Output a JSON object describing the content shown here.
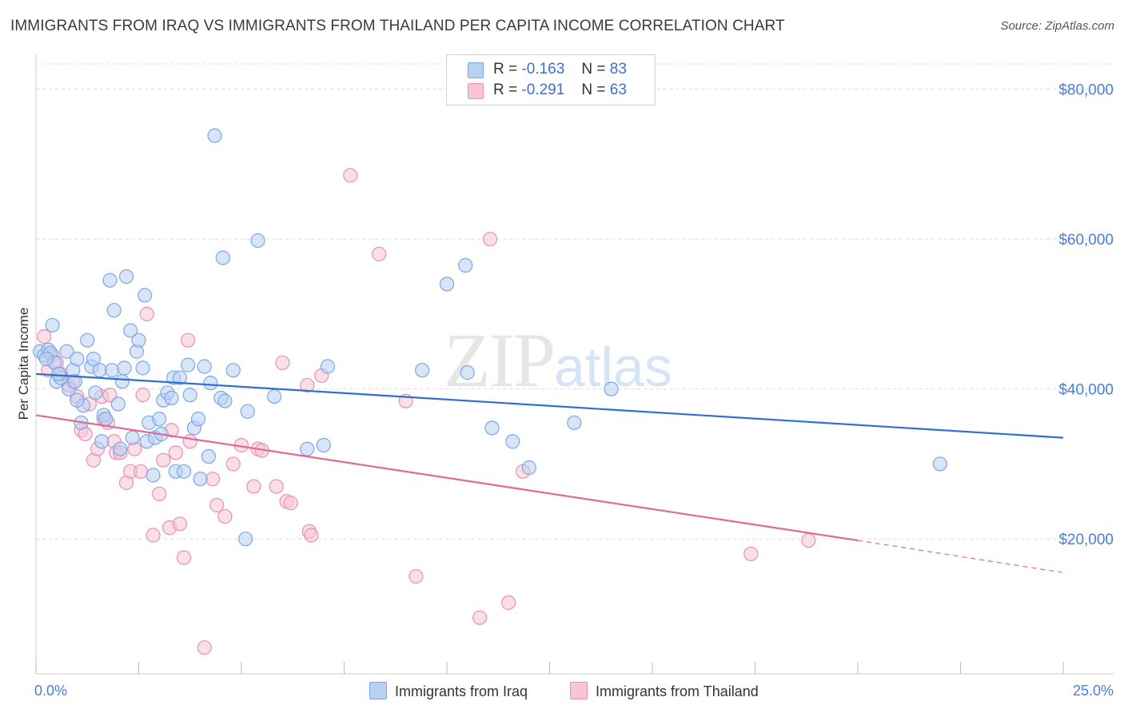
{
  "title": "IMMIGRANTS FROM IRAQ VS IMMIGRANTS FROM THAILAND PER CAPITA INCOME CORRELATION CHART",
  "source": "Source: ZipAtlas.com",
  "watermark": {
    "zip": "ZIP",
    "atlas": "atlas"
  },
  "legend": {
    "rows": [
      {
        "r_label": "R =",
        "r_value": "-0.163",
        "n_label": "N =",
        "n_value": "83"
      },
      {
        "r_label": "R =",
        "r_value": "-0.291",
        "n_label": "N =",
        "n_value": "63"
      }
    ]
  },
  "bottom_legend": {
    "series1": "Immigrants from Iraq",
    "series2": "Immigrants from Thailand"
  },
  "chart_data": {
    "type": "scatter",
    "title": "IMMIGRANTS FROM IRAQ VS IMMIGRANTS FROM THAILAND PER CAPITA INCOME CORRELATION CHART",
    "xlabel": "",
    "ylabel": "Per Capita Income",
    "xlim": [
      0,
      25
    ],
    "ylim": [
      2000,
      84000
    ],
    "x_tick_labels": [
      "0.0%",
      "25.0%"
    ],
    "y_ticks": [
      20000,
      40000,
      60000,
      80000
    ],
    "y_tick_labels": [
      "$20,000",
      "$40,000",
      "$60,000",
      "$80,000"
    ],
    "grid": true,
    "colors": {
      "iraq": "#7ba7e6",
      "iraq_fill": "#b8d0f4",
      "thailand": "#ee8fb0",
      "thailand_fill": "#f8c5d6",
      "iraq_line": "#2f6fce",
      "thailand_line": "#e06a95"
    },
    "series": [
      {
        "name": "Immigrants from Iraq",
        "r": -0.163,
        "n": 83,
        "trend": {
          "x": [
            0.0,
            25.0
          ],
          "y": [
            42000,
            33500
          ]
        },
        "points": [
          [
            0.1,
            45000
          ],
          [
            0.2,
            44500
          ],
          [
            0.3,
            45200
          ],
          [
            0.35,
            44800
          ],
          [
            0.4,
            48500
          ],
          [
            0.45,
            43500
          ],
          [
            0.5,
            41000
          ],
          [
            0.6,
            41500
          ],
          [
            0.75,
            45000
          ],
          [
            0.8,
            40000
          ],
          [
            0.9,
            42500
          ],
          [
            0.95,
            41000
          ],
          [
            1.0,
            44000
          ],
          [
            1.1,
            35500
          ],
          [
            1.15,
            37800
          ],
          [
            1.25,
            46500
          ],
          [
            1.35,
            43000
          ],
          [
            1.4,
            44000
          ],
          [
            1.45,
            39500
          ],
          [
            1.55,
            42500
          ],
          [
            1.6,
            33000
          ],
          [
            1.65,
            36500
          ],
          [
            1.7,
            36000
          ],
          [
            1.8,
            54500
          ],
          [
            1.85,
            42500
          ],
          [
            1.9,
            50500
          ],
          [
            2.0,
            38000
          ],
          [
            2.05,
            32000
          ],
          [
            2.1,
            41000
          ],
          [
            2.15,
            42800
          ],
          [
            2.2,
            55000
          ],
          [
            2.3,
            47800
          ],
          [
            2.35,
            33500
          ],
          [
            2.45,
            45000
          ],
          [
            2.5,
            46500
          ],
          [
            2.6,
            42800
          ],
          [
            2.65,
            52500
          ],
          [
            2.7,
            33000
          ],
          [
            2.75,
            35500
          ],
          [
            2.85,
            28500
          ],
          [
            2.9,
            33500
          ],
          [
            3.0,
            36000
          ],
          [
            3.05,
            34000
          ],
          [
            3.1,
            38500
          ],
          [
            3.2,
            39500
          ],
          [
            3.3,
            38800
          ],
          [
            3.35,
            41500
          ],
          [
            3.4,
            29000
          ],
          [
            3.5,
            41500
          ],
          [
            3.6,
            29000
          ],
          [
            3.7,
            43200
          ],
          [
            3.75,
            39200
          ],
          [
            3.85,
            34800
          ],
          [
            3.95,
            36000
          ],
          [
            4.0,
            28000
          ],
          [
            4.1,
            43000
          ],
          [
            4.2,
            31000
          ],
          [
            4.25,
            40800
          ],
          [
            4.5,
            38800
          ],
          [
            4.55,
            57500
          ],
          [
            4.6,
            38400
          ],
          [
            4.35,
            73800
          ],
          [
            4.8,
            42500
          ],
          [
            5.15,
            37000
          ],
          [
            5.1,
            20000
          ],
          [
            5.4,
            59800
          ],
          [
            5.8,
            39000
          ],
          [
            6.6,
            32000
          ],
          [
            7.0,
            32500
          ],
          [
            7.1,
            43000
          ],
          [
            9.4,
            42500
          ],
          [
            10.0,
            54000
          ],
          [
            10.45,
            56500
          ],
          [
            10.5,
            42200
          ],
          [
            11.1,
            34800
          ],
          [
            11.6,
            33000
          ],
          [
            12.0,
            29500
          ],
          [
            13.1,
            35500
          ],
          [
            14.0,
            40000
          ],
          [
            22.0,
            30000
          ],
          [
            0.25,
            44000
          ],
          [
            0.55,
            42000
          ],
          [
            1.0,
            38500
          ]
        ]
      },
      {
        "name": "Immigrants from Thailand",
        "r": -0.291,
        "n": 63,
        "trend": {
          "x": [
            0.0,
            20.0
          ],
          "y": [
            36500,
            19800
          ]
        },
        "trend_dashed": {
          "x": [
            20.0,
            25.0
          ],
          "y": [
            19800,
            15500
          ]
        },
        "points": [
          [
            0.2,
            47000
          ],
          [
            0.3,
            42500
          ],
          [
            0.4,
            44500
          ],
          [
            0.5,
            43500
          ],
          [
            0.6,
            42000
          ],
          [
            0.8,
            40500
          ],
          [
            0.9,
            41000
          ],
          [
            1.0,
            39000
          ],
          [
            1.1,
            34500
          ],
          [
            1.2,
            34000
          ],
          [
            1.3,
            38000
          ],
          [
            1.4,
            30500
          ],
          [
            1.5,
            32000
          ],
          [
            1.6,
            39000
          ],
          [
            1.65,
            36000
          ],
          [
            1.75,
            35500
          ],
          [
            1.8,
            39200
          ],
          [
            1.9,
            33000
          ],
          [
            1.95,
            31500
          ],
          [
            2.05,
            31500
          ],
          [
            2.2,
            27500
          ],
          [
            2.3,
            29000
          ],
          [
            2.4,
            32000
          ],
          [
            2.55,
            29000
          ],
          [
            2.6,
            39200
          ],
          [
            2.7,
            50000
          ],
          [
            2.85,
            20500
          ],
          [
            3.0,
            26000
          ],
          [
            3.1,
            30500
          ],
          [
            3.25,
            21500
          ],
          [
            3.3,
            34500
          ],
          [
            3.4,
            31500
          ],
          [
            3.5,
            22000
          ],
          [
            3.6,
            17500
          ],
          [
            3.7,
            46500
          ],
          [
            3.75,
            33000
          ],
          [
            4.1,
            5500
          ],
          [
            4.3,
            28000
          ],
          [
            4.4,
            24500
          ],
          [
            4.6,
            23000
          ],
          [
            4.8,
            30000
          ],
          [
            5.0,
            32500
          ],
          [
            5.3,
            27000
          ],
          [
            5.4,
            32000
          ],
          [
            5.5,
            31800
          ],
          [
            5.85,
            27000
          ],
          [
            6.1,
            25000
          ],
          [
            6.2,
            24800
          ],
          [
            6.6,
            40500
          ],
          [
            6.65,
            21000
          ],
          [
            6.7,
            20500
          ],
          [
            6.95,
            41800
          ],
          [
            7.65,
            68500
          ],
          [
            6.0,
            43500
          ],
          [
            8.35,
            58000
          ],
          [
            9.0,
            38400
          ],
          [
            9.25,
            15000
          ],
          [
            10.8,
            9500
          ],
          [
            11.05,
            60000
          ],
          [
            11.5,
            11500
          ],
          [
            11.85,
            29000
          ],
          [
            17.4,
            18000
          ],
          [
            18.8,
            19800
          ]
        ]
      }
    ]
  }
}
